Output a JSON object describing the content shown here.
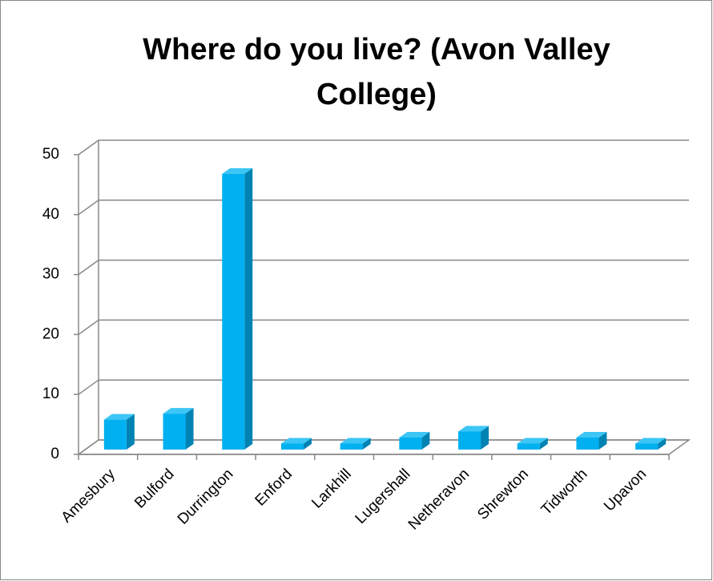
{
  "chart_data": {
    "type": "bar",
    "title": "Where do you live? (Avon Valley College)",
    "categories": [
      "Amesbury",
      "Bulford",
      "Durrington",
      "Enford",
      "Larkhill",
      "Lugershall",
      "Netheravon",
      "Shrewton",
      "Tidworth",
      "Upavon"
    ],
    "values": [
      5,
      6,
      46,
      1,
      1,
      2,
      3,
      1,
      2,
      1
    ],
    "color": "#00b0f0",
    "ylim": [
      0,
      50
    ],
    "yticks": [
      0,
      10,
      20,
      30,
      40,
      50
    ],
    "grid": true
  }
}
